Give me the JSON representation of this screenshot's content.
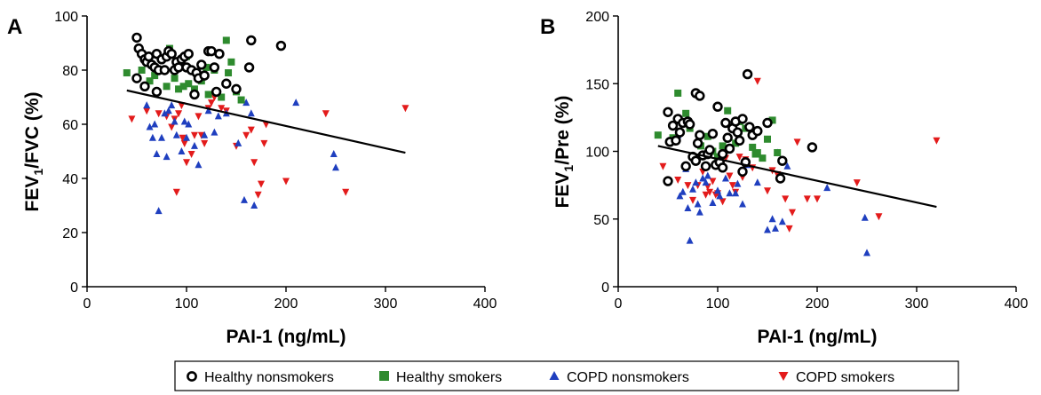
{
  "legend": [
    {
      "key": "hn",
      "label": "Healthy nonsmokers",
      "marker": "ring-icon",
      "color": "#000000"
    },
    {
      "key": "hs",
      "label": "Healthy smokers",
      "marker": "square-icon",
      "color": "#2e8b2e"
    },
    {
      "key": "cn",
      "label": "COPD nonsmokers",
      "marker": "triangle-up-icon",
      "color": "#1f3fbf"
    },
    {
      "key": "cs",
      "label": "COPD smokers",
      "marker": "triangle-down-icon",
      "color": "#e31b1b"
    }
  ],
  "chart_data": [
    {
      "type": "scatter",
      "panel_label": "A",
      "xlabel": "PAI-1 (ng/mL)",
      "ylabel_main": "FEV",
      "ylabel_sub": "1",
      "ylabel_rest": "/FVC (%)",
      "xlim": [
        0,
        400
      ],
      "ylim": [
        0,
        100
      ],
      "xticks": [
        0,
        100,
        200,
        300,
        400
      ],
      "yticks": [
        0,
        20,
        40,
        60,
        80,
        100
      ],
      "grid": false,
      "fit_line": {
        "x": [
          40,
          320
        ],
        "y": [
          72.5,
          49.5
        ]
      },
      "series": [
        {
          "key": "hn",
          "points": [
            [
              50,
              92
            ],
            [
              52,
              88
            ],
            [
              55,
              86
            ],
            [
              58,
              84
            ],
            [
              60,
              83
            ],
            [
              62,
              85
            ],
            [
              65,
              82
            ],
            [
              68,
              81
            ],
            [
              70,
              86
            ],
            [
              72,
              80
            ],
            [
              75,
              84
            ],
            [
              78,
              80
            ],
            [
              80,
              85
            ],
            [
              82,
              87
            ],
            [
              85,
              86
            ],
            [
              88,
              80
            ],
            [
              90,
              83
            ],
            [
              92,
              81
            ],
            [
              95,
              84
            ],
            [
              98,
              85
            ],
            [
              100,
              81
            ],
            [
              102,
              86
            ],
            [
              105,
              80
            ],
            [
              108,
              71
            ],
            [
              110,
              79
            ],
            [
              112,
              77
            ],
            [
              115,
              82
            ],
            [
              118,
              78
            ],
            [
              122,
              87
            ],
            [
              125,
              87
            ],
            [
              128,
              81
            ],
            [
              130,
              72
            ],
            [
              133,
              86
            ],
            [
              140,
              75
            ],
            [
              150,
              73
            ],
            [
              163,
              81
            ],
            [
              165,
              91
            ],
            [
              195,
              89
            ],
            [
              50,
              77
            ],
            [
              58,
              74
            ],
            [
              70,
              72
            ]
          ]
        },
        {
          "key": "hs",
          "points": [
            [
              40,
              79
            ],
            [
              55,
              80
            ],
            [
              63,
              76
            ],
            [
              68,
              78
            ],
            [
              75,
              80
            ],
            [
              80,
              74
            ],
            [
              83,
              88
            ],
            [
              88,
              77
            ],
            [
              92,
              73
            ],
            [
              97,
              74
            ],
            [
              100,
              85
            ],
            [
              102,
              75
            ],
            [
              108,
              73
            ],
            [
              115,
              76
            ],
            [
              120,
              81
            ],
            [
              122,
              71
            ],
            [
              128,
              80
            ],
            [
              135,
              70
            ],
            [
              140,
              91
            ],
            [
              142,
              79
            ],
            [
              145,
              83
            ],
            [
              150,
              72
            ],
            [
              155,
              69
            ]
          ]
        },
        {
          "key": "cn",
          "points": [
            [
              60,
              67
            ],
            [
              63,
              59
            ],
            [
              66,
              55
            ],
            [
              68,
              60
            ],
            [
              70,
              49
            ],
            [
              72,
              28
            ],
            [
              75,
              55
            ],
            [
              78,
              64
            ],
            [
              80,
              48
            ],
            [
              82,
              65
            ],
            [
              85,
              67
            ],
            [
              88,
              61
            ],
            [
              90,
              56
            ],
            [
              95,
              50
            ],
            [
              98,
              61
            ],
            [
              100,
              55
            ],
            [
              102,
              60
            ],
            [
              108,
              52
            ],
            [
              112,
              45
            ],
            [
              118,
              56
            ],
            [
              122,
              65
            ],
            [
              128,
              57
            ],
            [
              132,
              63
            ],
            [
              140,
              64
            ],
            [
              152,
              53
            ],
            [
              158,
              32
            ],
            [
              160,
              68
            ],
            [
              165,
              64
            ],
            [
              168,
              30
            ],
            [
              210,
              68
            ],
            [
              248,
              49
            ],
            [
              250,
              44
            ]
          ]
        },
        {
          "key": "cs",
          "points": [
            [
              45,
              62
            ],
            [
              60,
              65
            ],
            [
              72,
              64
            ],
            [
              80,
              63
            ],
            [
              85,
              59
            ],
            [
              88,
              62
            ],
            [
              90,
              35
            ],
            [
              92,
              64
            ],
            [
              95,
              67
            ],
            [
              96,
              55
            ],
            [
              98,
              53
            ],
            [
              100,
              46
            ],
            [
              105,
              49
            ],
            [
              108,
              56
            ],
            [
              112,
              63
            ],
            [
              115,
              56
            ],
            [
              118,
              53
            ],
            [
              122,
              66
            ],
            [
              125,
              68
            ],
            [
              128,
              70
            ],
            [
              135,
              66
            ],
            [
              140,
              65
            ],
            [
              150,
              52
            ],
            [
              160,
              56
            ],
            [
              165,
              58
            ],
            [
              168,
              46
            ],
            [
              172,
              34
            ],
            [
              175,
              38
            ],
            [
              178,
              53
            ],
            [
              180,
              60
            ],
            [
              200,
              39
            ],
            [
              240,
              64
            ],
            [
              260,
              35
            ],
            [
              320,
              66
            ]
          ]
        }
      ]
    },
    {
      "type": "scatter",
      "panel_label": "B",
      "xlabel": "PAI-1 (ng/mL)",
      "ylabel_main": "FEV",
      "ylabel_sub": "1",
      "ylabel_rest": "/Pre (%)",
      "xlim": [
        0,
        400
      ],
      "ylim": [
        0,
        200
      ],
      "xticks": [
        0,
        100,
        200,
        300,
        400
      ],
      "yticks": [
        0,
        50,
        100,
        150,
        200
      ],
      "grid": false,
      "fit_line": {
        "x": [
          40,
          320
        ],
        "y": [
          104,
          59
        ]
      },
      "series": [
        {
          "key": "hn",
          "points": [
            [
              50,
              129
            ],
            [
              52,
              107
            ],
            [
              55,
              119
            ],
            [
              58,
              108
            ],
            [
              60,
              124
            ],
            [
              62,
              114
            ],
            [
              65,
              121
            ],
            [
              68,
              89
            ],
            [
              70,
              122
            ],
            [
              75,
              96
            ],
            [
              78,
              93
            ],
            [
              80,
              106
            ],
            [
              82,
              112
            ],
            [
              85,
              97
            ],
            [
              88,
              89
            ],
            [
              90,
              98
            ],
            [
              92,
              101
            ],
            [
              95,
              113
            ],
            [
              98,
              90
            ],
            [
              100,
              133
            ],
            [
              102,
              92
            ],
            [
              105,
              98
            ],
            [
              108,
              121
            ],
            [
              110,
              110
            ],
            [
              112,
              102
            ],
            [
              115,
              117
            ],
            [
              118,
              122
            ],
            [
              120,
              114
            ],
            [
              122,
              108
            ],
            [
              125,
              124
            ],
            [
              128,
              92
            ],
            [
              130,
              157
            ],
            [
              132,
              118
            ],
            [
              135,
              112
            ],
            [
              140,
              115
            ],
            [
              150,
              121
            ],
            [
              163,
              80
            ],
            [
              165,
              93
            ],
            [
              195,
              103
            ],
            [
              50,
              78
            ],
            [
              72,
              120
            ],
            [
              78,
              143
            ],
            [
              82,
              141
            ],
            [
              105,
              88
            ],
            [
              125,
              85
            ]
          ]
        },
        {
          "key": "hs",
          "points": [
            [
              40,
              112
            ],
            [
              55,
              110
            ],
            [
              60,
              143
            ],
            [
              68,
              128
            ],
            [
              72,
              117
            ],
            [
              78,
              93
            ],
            [
              83,
              104
            ],
            [
              90,
              111
            ],
            [
              95,
              100
            ],
            [
              100,
              96
            ],
            [
              105,
              104
            ],
            [
              110,
              130
            ],
            [
              118,
              106
            ],
            [
              122,
              122
            ],
            [
              128,
              117
            ],
            [
              135,
              103
            ],
            [
              138,
              98
            ],
            [
              140,
              99
            ],
            [
              145,
              95
            ],
            [
              150,
              109
            ],
            [
              155,
              123
            ],
            [
              160,
              99
            ]
          ]
        },
        {
          "key": "cn",
          "points": [
            [
              60,
              112
            ],
            [
              62,
              67
            ],
            [
              65,
              70
            ],
            [
              68,
              87
            ],
            [
              70,
              58
            ],
            [
              72,
              34
            ],
            [
              75,
              72
            ],
            [
              78,
              77
            ],
            [
              80,
              61
            ],
            [
              82,
              55
            ],
            [
              85,
              80
            ],
            [
              88,
              77
            ],
            [
              90,
              82
            ],
            [
              95,
              62
            ],
            [
              100,
              71
            ],
            [
              102,
              67
            ],
            [
              108,
              80
            ],
            [
              112,
              69
            ],
            [
              118,
              69
            ],
            [
              120,
              76
            ],
            [
              125,
              61
            ],
            [
              130,
              90
            ],
            [
              140,
              77
            ],
            [
              150,
              42
            ],
            [
              155,
              50
            ],
            [
              158,
              43
            ],
            [
              160,
              99
            ],
            [
              165,
              48
            ],
            [
              170,
              89
            ],
            [
              210,
              73
            ],
            [
              248,
              51
            ],
            [
              250,
              25
            ]
          ]
        },
        {
          "key": "cs",
          "points": [
            [
              45,
              89
            ],
            [
              60,
              79
            ],
            [
              70,
              75
            ],
            [
              75,
              64
            ],
            [
              80,
              75
            ],
            [
              85,
              85
            ],
            [
              88,
              68
            ],
            [
              90,
              74
            ],
            [
              92,
              70
            ],
            [
              95,
              78
            ],
            [
              98,
              68
            ],
            [
              100,
              69
            ],
            [
              105,
              63
            ],
            [
              108,
              95
            ],
            [
              112,
              82
            ],
            [
              115,
              75
            ],
            [
              118,
              70
            ],
            [
              122,
              96
            ],
            [
              125,
              81
            ],
            [
              128,
              94
            ],
            [
              135,
              88
            ],
            [
              140,
              152
            ],
            [
              150,
              71
            ],
            [
              155,
              86
            ],
            [
              160,
              83
            ],
            [
              165,
              93
            ],
            [
              168,
              65
            ],
            [
              172,
              43
            ],
            [
              175,
              55
            ],
            [
              180,
              107
            ],
            [
              190,
              65
            ],
            [
              200,
              65
            ],
            [
              240,
              77
            ],
            [
              262,
              52
            ],
            [
              320,
              108
            ]
          ]
        }
      ]
    }
  ]
}
